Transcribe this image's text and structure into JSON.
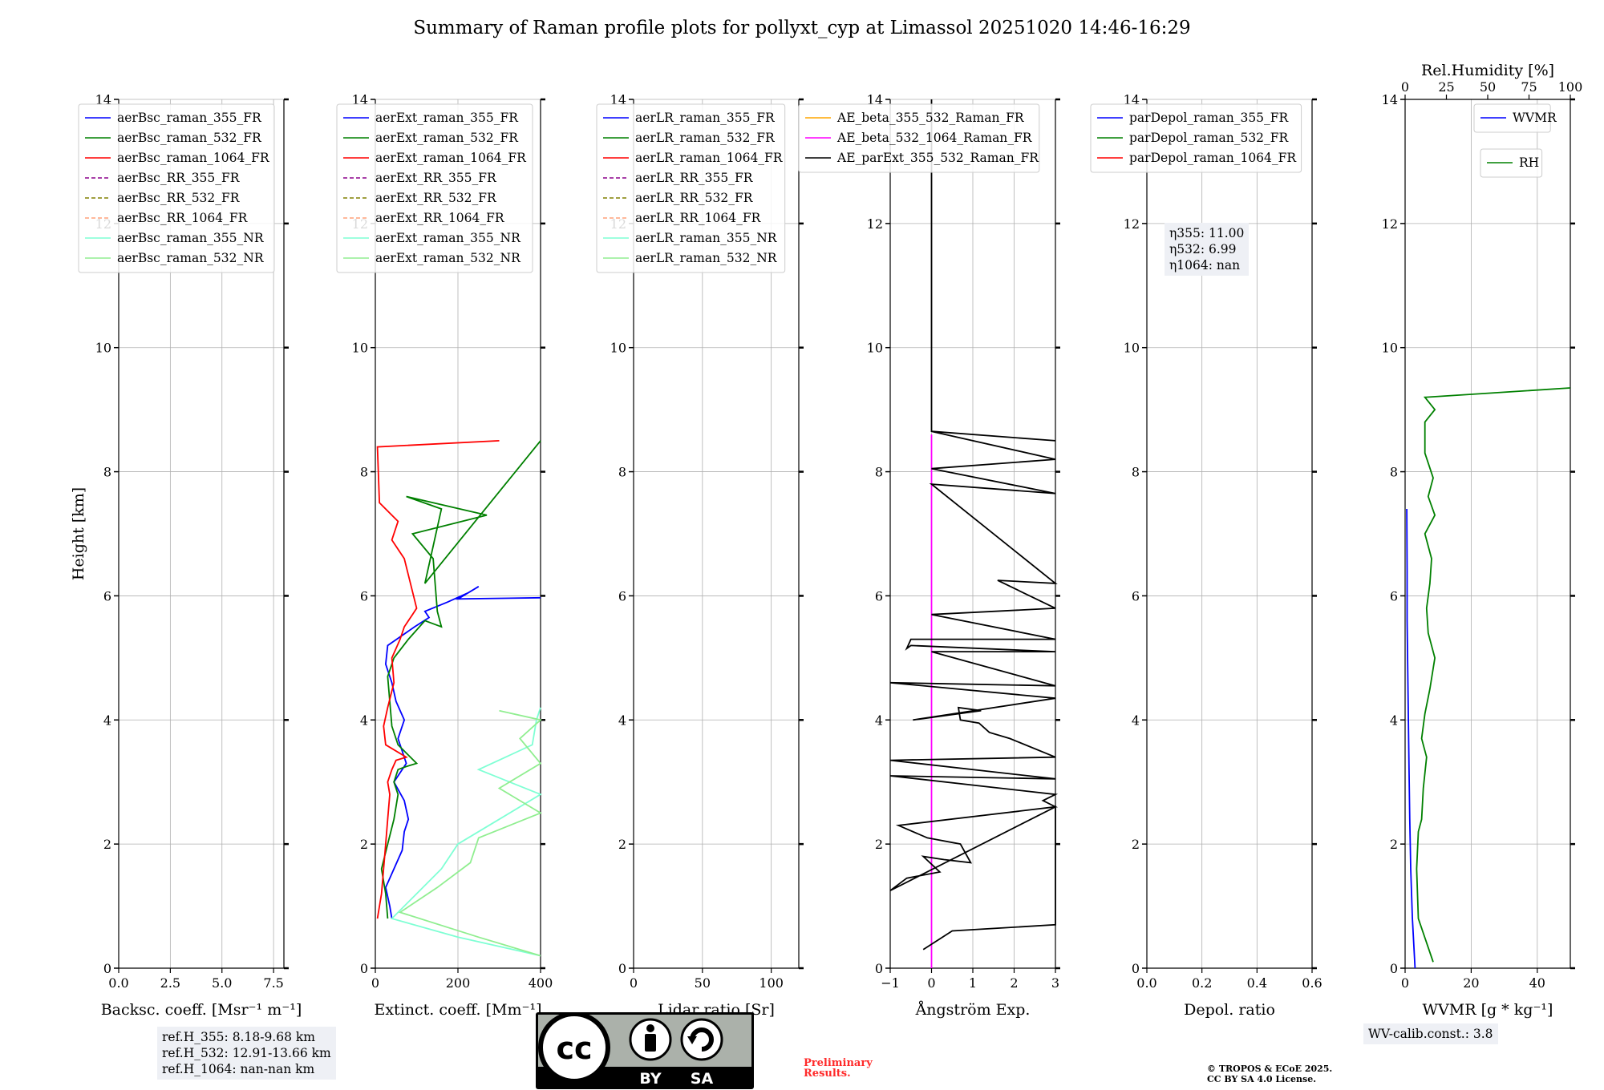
{
  "title": "Summary of Raman profile plots for pollyxt_cyp at Limassol 20251020 14:46-16:29",
  "ylabel": "Height [km]",
  "panels": [
    {
      "id": "bsc",
      "xlabel": "Backsc. coeff. [Msr⁻¹ m⁻¹]",
      "xlim": [
        0,
        8
      ],
      "xticks": [
        0,
        2.5,
        5,
        7.5
      ],
      "xticklabels": [
        "0.0",
        "2.5",
        "5.0",
        "7.5"
      ],
      "legend": [
        {
          "label": "aerBsc_raman_355_FR",
          "color": "#0000ff",
          "dash": false
        },
        {
          "label": "aerBsc_raman_532_FR",
          "color": "#008000",
          "dash": false
        },
        {
          "label": "aerBsc_raman_1064_FR",
          "color": "#ff0000",
          "dash": false
        },
        {
          "label": "aerBsc_RR_355_FR",
          "color": "#8b008b",
          "dash": true
        },
        {
          "label": "aerBsc_RR_532_FR",
          "color": "#808000",
          "dash": true
        },
        {
          "label": "aerBsc_RR_1064_FR",
          "color": "#ffa07a",
          "dash": true
        },
        {
          "label": "aerBsc_raman_355_NR",
          "color": "#7fffd4",
          "dash": false
        },
        {
          "label": "aerBsc_raman_532_NR",
          "color": "#90ee90",
          "dash": false
        }
      ]
    },
    {
      "id": "ext",
      "xlabel": "Extinct. coeff. [Mm⁻¹]",
      "xlim": [
        0,
        400
      ],
      "xticks": [
        0,
        200,
        400
      ],
      "xticklabels": [
        "0",
        "200",
        "400"
      ],
      "legend": [
        {
          "label": "aerExt_raman_355_FR",
          "color": "#0000ff",
          "dash": false
        },
        {
          "label": "aerExt_raman_532_FR",
          "color": "#008000",
          "dash": false
        },
        {
          "label": "aerExt_raman_1064_FR",
          "color": "#ff0000",
          "dash": false
        },
        {
          "label": "aerExt_RR_355_FR",
          "color": "#8b008b",
          "dash": true
        },
        {
          "label": "aerExt_RR_532_FR",
          "color": "#808000",
          "dash": true
        },
        {
          "label": "aerExt_RR_1064_FR",
          "color": "#ffa07a",
          "dash": true
        },
        {
          "label": "aerExt_raman_355_NR",
          "color": "#7fffd4",
          "dash": false
        },
        {
          "label": "aerExt_raman_532_NR",
          "color": "#90ee90",
          "dash": false
        }
      ]
    },
    {
      "id": "lr",
      "xlabel": "Lidar ratio [Sr]",
      "xlim": [
        0,
        120
      ],
      "xticks": [
        0,
        50,
        100
      ],
      "xticklabels": [
        "0",
        "50",
        "100"
      ],
      "legend": [
        {
          "label": "aerLR_raman_355_FR",
          "color": "#0000ff",
          "dash": false
        },
        {
          "label": "aerLR_raman_532_FR",
          "color": "#008000",
          "dash": false
        },
        {
          "label": "aerLR_raman_1064_FR",
          "color": "#ff0000",
          "dash": false
        },
        {
          "label": "aerLR_RR_355_FR",
          "color": "#8b008b",
          "dash": true
        },
        {
          "label": "aerLR_RR_532_FR",
          "color": "#808000",
          "dash": true
        },
        {
          "label": "aerLR_RR_1064_FR",
          "color": "#ffa07a",
          "dash": true
        },
        {
          "label": "aerLR_raman_355_NR",
          "color": "#7fffd4",
          "dash": false
        },
        {
          "label": "aerLR_raman_532_NR",
          "color": "#90ee90",
          "dash": false
        }
      ]
    },
    {
      "id": "ae",
      "xlabel": "Ångström Exp.",
      "xlim": [
        -1,
        3
      ],
      "xticks": [
        -1,
        0,
        1,
        2,
        3
      ],
      "xticklabels": [
        "−1",
        "0",
        "1",
        "2",
        "3"
      ],
      "legend": [
        {
          "label": "AE_beta_355_532_Raman_FR",
          "color": "#ffa500",
          "dash": false
        },
        {
          "label": "AE_beta_532_1064_Raman_FR",
          "color": "#ff00ff",
          "dash": false
        },
        {
          "label": "AE_parExt_355_532_Raman_FR",
          "color": "#000000",
          "dash": false
        }
      ]
    },
    {
      "id": "dep",
      "xlabel": "Depol. ratio",
      "xlim": [
        0,
        0.6
      ],
      "xticks": [
        0,
        0.2,
        0.4,
        0.6
      ],
      "xticklabels": [
        "0.0",
        "0.2",
        "0.4",
        "0.6"
      ],
      "legend": [
        {
          "label": "parDepol_raman_355_FR",
          "color": "#0000ff",
          "dash": false
        },
        {
          "label": "parDepol_raman_532_FR",
          "color": "#008000",
          "dash": false
        },
        {
          "label": "parDepol_raman_1064_FR",
          "color": "#ff0000",
          "dash": false
        }
      ]
    },
    {
      "id": "wv",
      "xlabel": "WVMR [g * kg⁻¹]",
      "xlim": [
        0,
        50
      ],
      "xticks": [
        0,
        20,
        40
      ],
      "xticklabels": [
        "0",
        "20",
        "40"
      ],
      "top_xlabel": "Rel.Humidity [%]",
      "top_xlim": [
        0,
        100
      ],
      "top_xticks": [
        0,
        25,
        50,
        75,
        100
      ],
      "legend": [
        {
          "label": "WVMR",
          "color": "#0000ff",
          "dash": false
        }
      ],
      "legend2": [
        {
          "label": "RH",
          "color": "#008000",
          "dash": false
        }
      ]
    }
  ],
  "y_axis": {
    "ylim": [
      0,
      14
    ],
    "ticks": [
      0,
      2,
      4,
      6,
      8,
      10,
      12,
      14
    ],
    "grid": true
  },
  "depol_eta": [
    "η355: 11.00",
    "η532: 6.99",
    "η1064: nan"
  ],
  "ref_heights": [
    "ref.H_355: 8.18-9.68 km",
    "ref.H_532: 12.91-13.66 km",
    "ref.H_1064: nan-nan km"
  ],
  "wv_calib": "WV-calib.const.: 3.8",
  "preliminary": [
    "Preliminary",
    "Results."
  ],
  "copyright": [
    "© TROPOS & ECoE 2025.",
    "CC BY SA 4.0 License."
  ],
  "license_badge": [
    "cc",
    "BY",
    "SA"
  ],
  "chart_data": [
    {
      "type": "line",
      "panel": "bsc",
      "xlabel": "Backsc. coeff. [Msr⁻¹ m⁻¹]",
      "ylabel": "Height [km]",
      "xlim": [
        0,
        8
      ],
      "ylim": [
        0,
        14
      ],
      "series": []
    },
    {
      "type": "line",
      "panel": "ext",
      "xlabel": "Extinct. coeff. [Mm⁻¹]",
      "ylabel": "Height [km]",
      "xlim": [
        0,
        400
      ],
      "ylim": [
        0,
        14
      ],
      "series": [
        {
          "name": "aerExt_raman_355_FR",
          "x": [
            40,
            35,
            25,
            45,
            65,
            70,
            80,
            70,
            45,
            75,
            55,
            70,
            50,
            40,
            25,
            30,
            95,
            130,
            120,
            175,
            225,
            250,
            200,
            400
          ],
          "y": [
            0.8,
            1.0,
            1.3,
            1.6,
            1.9,
            2.2,
            2.4,
            2.7,
            3.0,
            3.3,
            3.7,
            4.0,
            4.3,
            4.6,
            4.9,
            5.2,
            5.5,
            5.65,
            5.75,
            5.9,
            6.05,
            6.15,
            5.95,
            5.97
          ]
        },
        {
          "name": "aerExt_raman_532_FR",
          "x": [
            30,
            25,
            15,
            30,
            45,
            55,
            45,
            55,
            75,
            100,
            55,
            40,
            35,
            30,
            45,
            80,
            120,
            160,
            150,
            140,
            90,
            270,
            75,
            160,
            120,
            400
          ],
          "y": [
            0.8,
            1.2,
            1.6,
            2.0,
            2.4,
            2.8,
            3.0,
            3.2,
            3.25,
            3.3,
            3.6,
            3.9,
            4.3,
            4.7,
            5.0,
            5.3,
            5.6,
            5.5,
            5.75,
            6.6,
            7.0,
            7.3,
            7.6,
            7.4,
            6.2,
            8.5
          ]
        },
        {
          "name": "aerExt_raman_1064_FR",
          "x": [
            5,
            15,
            20,
            25,
            30,
            35,
            30,
            40,
            50,
            75,
            25,
            20,
            30,
            45,
            40,
            60,
            70,
            90,
            100,
            70,
            40,
            55,
            10,
            5,
            300
          ],
          "y": [
            0.8,
            1.2,
            1.6,
            2.0,
            2.4,
            2.8,
            3.0,
            3.2,
            3.35,
            3.4,
            3.6,
            3.9,
            4.2,
            4.6,
            5.0,
            5.3,
            5.5,
            5.7,
            5.8,
            6.6,
            6.9,
            7.2,
            7.5,
            8.4,
            8.5
          ]
        },
        {
          "name": "aerExt_raman_355_NR",
          "x": [
            400,
            200,
            40,
            100,
            160,
            200,
            300,
            400,
            250,
            380,
            390,
            400
          ],
          "y": [
            0.2,
            0.5,
            0.8,
            1.2,
            1.6,
            2.0,
            2.4,
            2.8,
            3.2,
            3.6,
            4.0,
            4.2
          ]
        },
        {
          "name": "aerExt_raman_532_NR",
          "x": [
            400,
            250,
            60,
            150,
            230,
            250,
            400,
            300,
            400,
            350,
            400,
            300
          ],
          "y": [
            0.2,
            0.5,
            0.9,
            1.3,
            1.7,
            2.1,
            2.5,
            2.9,
            3.3,
            3.7,
            4.0,
            4.15
          ]
        }
      ]
    },
    {
      "type": "line",
      "panel": "lr",
      "xlabel": "Lidar ratio [Sr]",
      "ylabel": "Height [km]",
      "xlim": [
        0,
        120
      ],
      "ylim": [
        0,
        14
      ],
      "series": []
    },
    {
      "type": "line",
      "panel": "ae",
      "xlabel": "Ångström Exp.",
      "ylabel": "Height [km]",
      "xlim": [
        -1,
        3
      ],
      "ylim": [
        0,
        14
      ],
      "series": [
        {
          "name": "AE_beta_532_1064_Raman_FR",
          "x": [
            0,
            0
          ],
          "y": [
            0,
            8.6
          ]
        },
        {
          "name": "AE_parExt_355_532_Raman_FR",
          "x": [
            -0.2,
            0.5,
            3,
            3,
            -1,
            -0.6,
            0.2,
            -0.2,
            0.3,
            0.95,
            0.7,
            -0.1,
            -0.8,
            3,
            2.7,
            3,
            -1,
            3,
            -1,
            3,
            1.9,
            1.4,
            1.15,
            0.7,
            0.65,
            1.2,
            -0.45,
            3,
            -1,
            3,
            0,
            3,
            -0.5,
            -0.6,
            -0.5,
            3,
            0,
            3,
            1.6,
            3,
            0,
            3,
            0,
            3,
            0,
            3,
            0,
            0
          ],
          "y": [
            0.3,
            0.6,
            0.7,
            2.6,
            1.25,
            1.45,
            1.55,
            1.8,
            1.75,
            1.7,
            2.0,
            2.1,
            2.3,
            2.6,
            2.7,
            2.8,
            3.1,
            3.05,
            3.35,
            3.4,
            3.7,
            3.8,
            3.95,
            4.0,
            4.2,
            4.15,
            4.0,
            4.35,
            4.6,
            4.55,
            5.1,
            5.1,
            5.2,
            5.15,
            5.3,
            5.3,
            5.7,
            5.8,
            6.25,
            6.2,
            7.8,
            7.65,
            8.05,
            8.2,
            8.65,
            8.5,
            8.65,
            14
          ]
        }
      ]
    },
    {
      "type": "line",
      "panel": "dep",
      "xlabel": "Depol. ratio",
      "ylabel": "Height [km]",
      "xlim": [
        0,
        0.6
      ],
      "ylim": [
        0,
        14
      ],
      "series": []
    },
    {
      "type": "line",
      "panel": "wv",
      "xlabel": "WVMR [g * kg⁻¹]",
      "ylabel": "Height [km]",
      "xlim": [
        0,
        50
      ],
      "ylim": [
        0,
        14
      ],
      "series": [
        {
          "name": "WVMR",
          "x": [
            3,
            2.2,
            1.7,
            1.4,
            1.2,
            1.0,
            0.8,
            0.6,
            0.6,
            0.5
          ],
          "y": [
            0,
            0.8,
            1.6,
            2.4,
            3.2,
            4.0,
            4.8,
            5.6,
            6.4,
            7.4
          ]
        },
        {
          "name": "RH",
          "axis": "top",
          "x": [
            17,
            8,
            7,
            8,
            10,
            11,
            13,
            10,
            12,
            15,
            18,
            14,
            13,
            15,
            16,
            12,
            18,
            14,
            17,
            12,
            12,
            12,
            18,
            12,
            100
          ],
          "y": [
            0.1,
            0.8,
            1.6,
            2.2,
            2.4,
            2.9,
            3.4,
            3.7,
            4.1,
            4.5,
            5.0,
            5.4,
            5.8,
            6.2,
            6.6,
            7.0,
            7.3,
            7.6,
            7.9,
            8.3,
            8.5,
            8.8,
            9.0,
            9.2,
            9.35
          ]
        }
      ]
    }
  ]
}
